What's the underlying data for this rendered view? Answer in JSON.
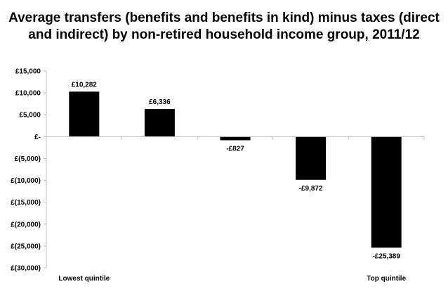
{
  "chart_data": {
    "type": "bar",
    "title": "Average transfers (benefits and benefits in kind) minus taxes (direct and indirect) by non-retired household income group, 2011/12",
    "categories": [
      "Lowest quintile",
      "",
      "",
      "",
      "Top quintile"
    ],
    "values": [
      10282,
      6336,
      -827,
      -9872,
      -25389
    ],
    "data_labels": [
      "£10,282",
      "£6,336",
      "-£827",
      "-£9,872",
      "-£25,389"
    ],
    "ylim": [
      -30000,
      15000
    ],
    "y_ticks": [
      15000,
      10000,
      5000,
      0,
      -5000,
      -10000,
      -15000,
      -20000,
      -25000,
      -30000
    ],
    "y_tick_labels": [
      "£15,000",
      "£10,000",
      "£5,000",
      "£-",
      "£(5,000)",
      "£(10,000)",
      "£(15,000)",
      "£(20,000)",
      "£(25,000)",
      "£(30,000)"
    ],
    "xlabel": "",
    "ylabel": "",
    "grid": false,
    "bar_color": "#000000",
    "axis_color": "#bfbfbf"
  }
}
